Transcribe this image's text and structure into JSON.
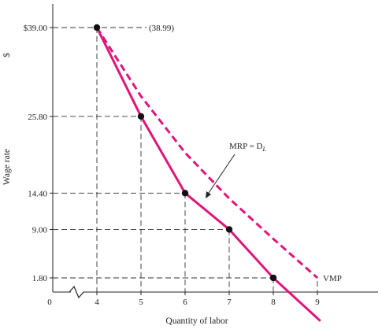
{
  "chart_data": {
    "type": "line",
    "xlabel": "Quantity of labor",
    "ylabel": "Wage rate",
    "y_unit": "$",
    "origin_label": "0",
    "x_axis_break": true,
    "x_ticks": [
      4,
      5,
      6,
      7,
      8,
      9
    ],
    "x_tick_labels": [
      "4",
      "5",
      "6",
      "7",
      "8",
      "9"
    ],
    "y_ticks": [
      1.8,
      9.0,
      14.4,
      25.8,
      39.0
    ],
    "y_tick_labels": [
      "1.80",
      "9.00",
      "14.40",
      "25.80",
      "$39.00"
    ],
    "xlim": [
      4,
      9
    ],
    "ylim": [
      0,
      42
    ],
    "grid": false,
    "series": [
      {
        "name": "MRP = D_L",
        "style": "solid",
        "color": "#e0157a",
        "markers": true,
        "x": [
          4,
          5,
          6,
          7,
          8,
          9.05
        ],
        "y": [
          39.0,
          25.8,
          14.4,
          9.0,
          1.8,
          -4.5
        ]
      },
      {
        "name": "VMP",
        "style": "dashed",
        "color": "#e0157a",
        "markers": false,
        "x": [
          4,
          5,
          6,
          7,
          8,
          9
        ],
        "y": [
          39.0,
          28.8,
          20.4,
          13.6,
          7.6,
          1.8
        ]
      }
    ],
    "annotations": [
      {
        "id": "vmp-value",
        "text": "(38.99)"
      },
      {
        "id": "mrp-label",
        "text": "MRP = D",
        "subscript": "L"
      },
      {
        "id": "vmp-label",
        "text": "VMP"
      }
    ]
  }
}
